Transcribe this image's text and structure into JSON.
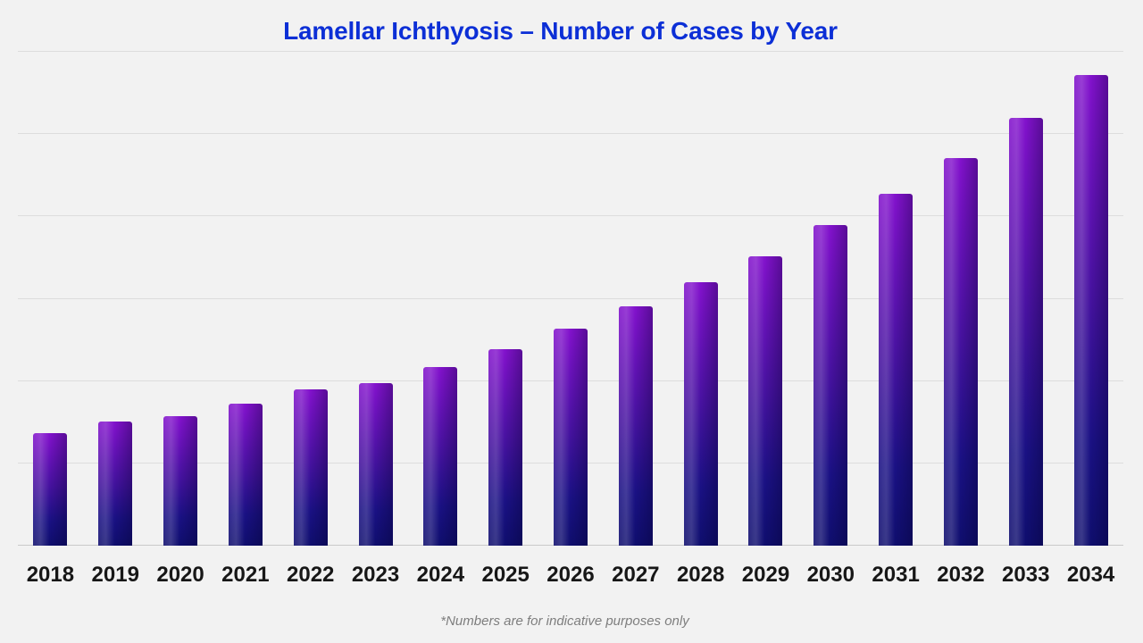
{
  "chart_data": {
    "type": "bar",
    "title": "Lamellar Ichthyosis – Number of Cases by Year",
    "footnote": "*Numbers are for indicative purposes only",
    "xlabel": "",
    "ylabel": "",
    "categories": [
      "2018",
      "2019",
      "2020",
      "2021",
      "2022",
      "2023",
      "2024",
      "2025",
      "2026",
      "2027",
      "2028",
      "2029",
      "2030",
      "2031",
      "2032",
      "2033",
      "2034"
    ],
    "values": [
      137,
      151,
      157,
      172,
      190,
      197,
      217,
      239,
      264,
      291,
      320,
      352,
      389,
      428,
      471,
      520,
      572
    ],
    "ylim": [
      0,
      600
    ],
    "gridline_step": 100,
    "y_tick_labels_visible": false,
    "axis_note": "y-axis has no visible tick labels; values estimated with one gridline interval = 100 units",
    "grid": "horizontal",
    "legend": "none",
    "colors": {
      "background": "#f2f2f2",
      "title": "#0c2fd6",
      "gridline": "#dddddd",
      "baseline": "#c9c9c9",
      "tick_label": "#171717",
      "footnote": "#7e7e7e",
      "bar_gradient_top": "#8312cd",
      "bar_gradient_mid": "#45129f",
      "bar_gradient_deep": "#1a1184",
      "bar_gradient_bottom": "#0f0e6e"
    }
  }
}
